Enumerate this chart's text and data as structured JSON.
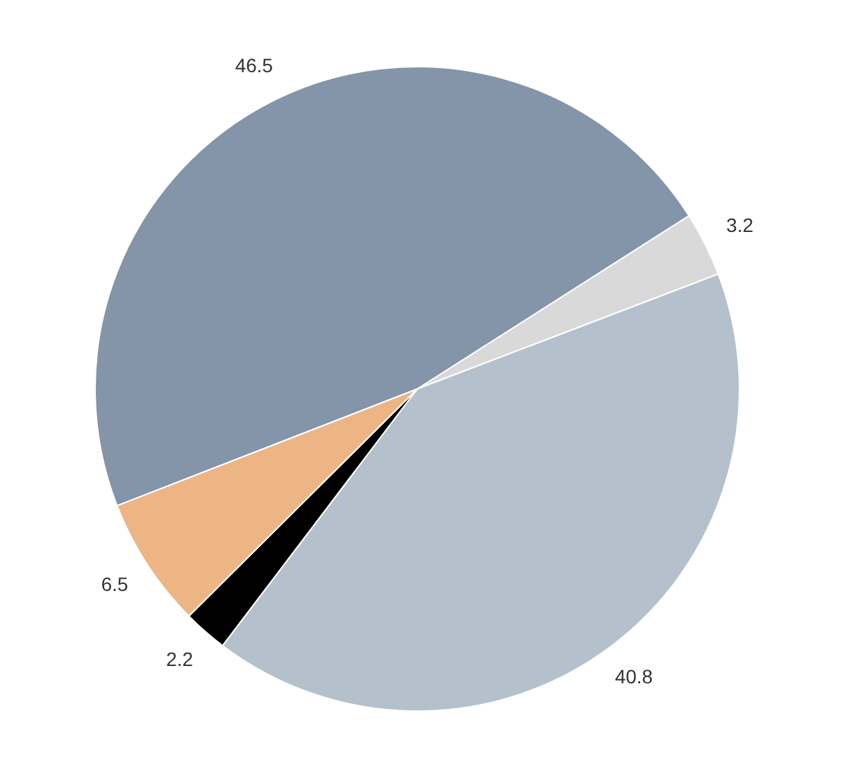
{
  "chart_data": {
    "type": "pie",
    "categories": [
      null,
      null,
      null,
      null,
      null
    ],
    "values": [
      3.2,
      40.8,
      2.2,
      6.5,
      46.5
    ],
    "colors": [
      "#d9d9d9",
      "#b4c1cc",
      "#000000",
      "#edb584",
      "#8494a9"
    ],
    "data_labels": true,
    "legend": false
  }
}
